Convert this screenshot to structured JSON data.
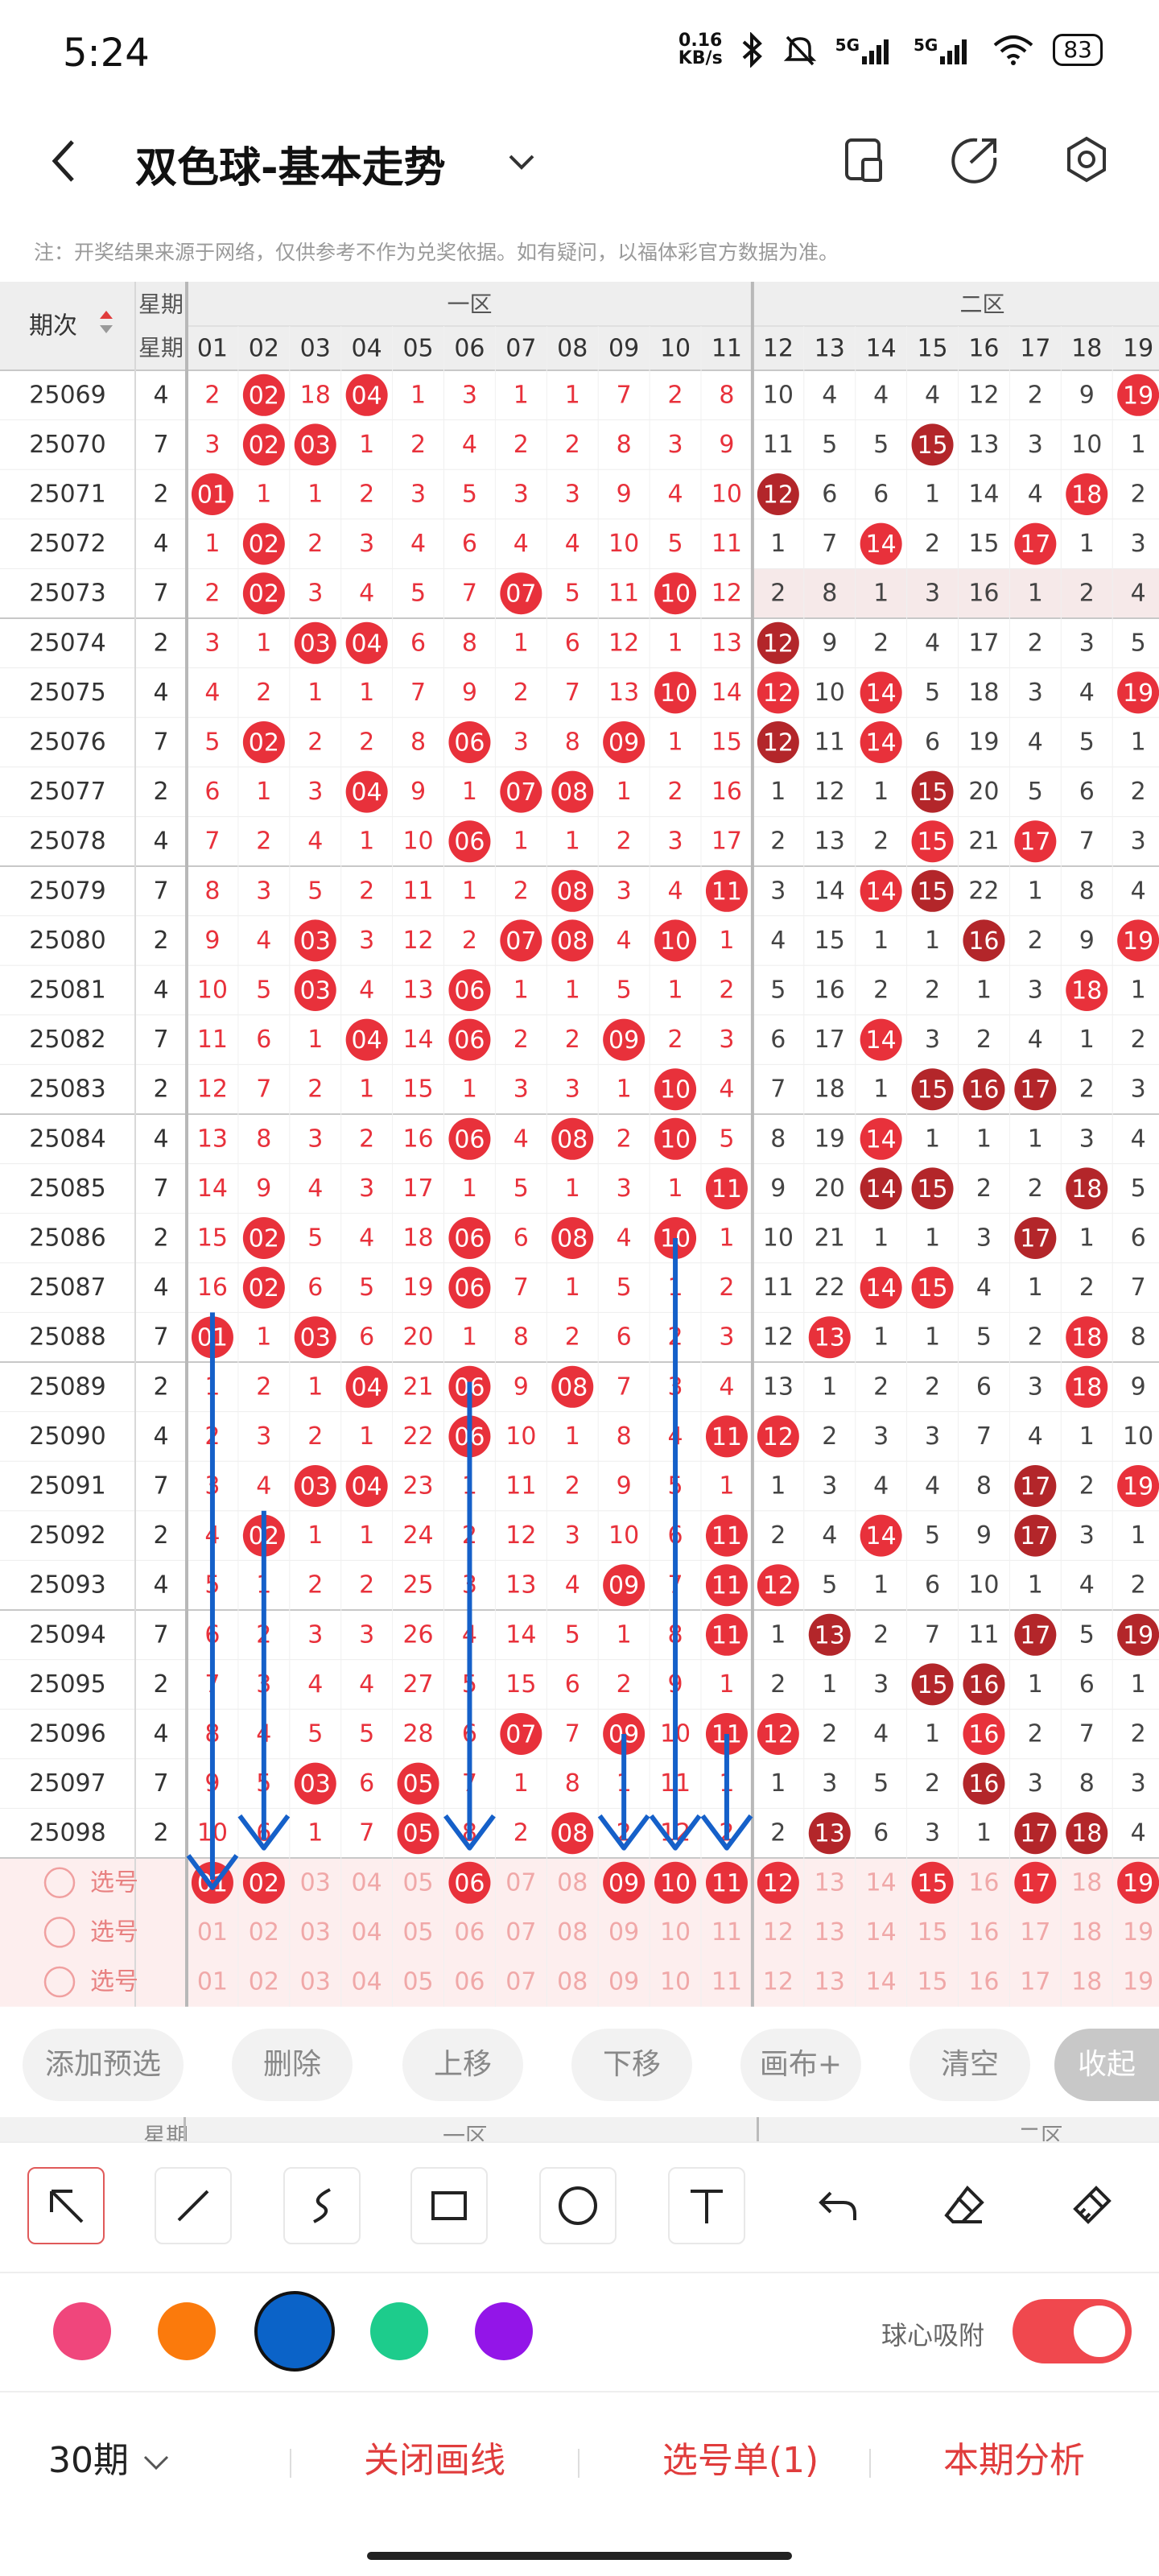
{
  "status": {
    "time": "5:24",
    "speed_value": "0.16",
    "speed_unit": "KB/s",
    "signal1": "5G",
    "signal2": "5G",
    "battery": "83",
    "icons": [
      "bluetooth-icon",
      "mute-icon",
      "signal-icon",
      "wifi-icon",
      "battery-icon"
    ]
  },
  "header": {
    "title": "双色球-基本走势",
    "icons": [
      "back-icon",
      "chevron-down-icon",
      "device-icon",
      "share-icon",
      "settings-icon"
    ]
  },
  "note": "注：开奖结果来源于网络，仅供参考不作为兑奖依据。如有疑问，以福体彩官方数据为准。",
  "table": {
    "col_issue": "期次",
    "col_week": "星期",
    "zone1": "一区",
    "zone2": "二区",
    "numbers": [
      "01",
      "02",
      "03",
      "04",
      "05",
      "06",
      "07",
      "08",
      "09",
      "10",
      "11",
      "12",
      "13",
      "14",
      "15",
      "16",
      "17",
      "18",
      "19"
    ],
    "rows": [
      {
        "issue": "25069",
        "week": "4",
        "cells": [
          "2",
          "02",
          "18",
          "04",
          "1",
          "3",
          "1",
          "1",
          "7",
          "2",
          "8",
          "10",
          "4",
          "4",
          "4",
          "12",
          "2",
          "9",
          "19"
        ],
        "hot": [
          2,
          4
        ],
        "hot2": [
          19
        ]
      },
      {
        "issue": "25070",
        "week": "7",
        "cells": [
          "3",
          "02",
          "03",
          "1",
          "2",
          "4",
          "2",
          "2",
          "8",
          "3",
          "9",
          "11",
          "5",
          "5",
          "15",
          "13",
          "3",
          "10",
          "1"
        ],
        "hot": [
          2,
          3
        ],
        "hot2": [
          15
        ]
      },
      {
        "issue": "25071",
        "week": "2",
        "cells": [
          "01",
          "1",
          "1",
          "2",
          "3",
          "5",
          "3",
          "3",
          "9",
          "4",
          "10",
          "12",
          "6",
          "6",
          "1",
          "14",
          "4",
          "18",
          "2"
        ],
        "hot": [
          1
        ],
        "hot2": [
          12,
          18
        ]
      },
      {
        "issue": "25072",
        "week": "4",
        "cells": [
          "1",
          "02",
          "2",
          "3",
          "4",
          "6",
          "4",
          "4",
          "10",
          "5",
          "11",
          "1",
          "7",
          "14",
          "2",
          "15",
          "17",
          "1",
          "3"
        ],
        "hot": [
          2
        ],
        "hot2": [
          14,
          17
        ]
      },
      {
        "issue": "25073",
        "week": "7",
        "cells": [
          "2",
          "02",
          "3",
          "4",
          "5",
          "7",
          "07",
          "5",
          "11",
          "10",
          "12",
          "2",
          "8",
          "1",
          "3",
          "16",
          "1",
          "2",
          "4"
        ],
        "hot": [
          2,
          7,
          10
        ],
        "hot2": []
      },
      {
        "issue": "25074",
        "week": "2",
        "cells": [
          "3",
          "1",
          "03",
          "04",
          "6",
          "8",
          "1",
          "6",
          "12",
          "1",
          "13",
          "12",
          "9",
          "2",
          "4",
          "17",
          "2",
          "3",
          "5"
        ],
        "hot": [
          3,
          4
        ],
        "hot2": [
          12
        ]
      },
      {
        "issue": "25075",
        "week": "4",
        "cells": [
          "4",
          "2",
          "1",
          "1",
          "7",
          "9",
          "2",
          "7",
          "13",
          "10",
          "14",
          "12",
          "10",
          "14",
          "5",
          "18",
          "3",
          "4",
          "19"
        ],
        "hot": [
          10
        ],
        "hot2": [
          12,
          14,
          19
        ]
      },
      {
        "issue": "25076",
        "week": "7",
        "cells": [
          "5",
          "02",
          "2",
          "2",
          "8",
          "06",
          "3",
          "8",
          "09",
          "1",
          "15",
          "12",
          "11",
          "14",
          "6",
          "19",
          "4",
          "5",
          "1"
        ],
        "hot": [
          2,
          6,
          9
        ],
        "hot2": [
          12,
          14
        ]
      },
      {
        "issue": "25077",
        "week": "2",
        "cells": [
          "6",
          "1",
          "3",
          "04",
          "9",
          "1",
          "07",
          "08",
          "1",
          "2",
          "16",
          "1",
          "12",
          "1",
          "15",
          "20",
          "5",
          "6",
          "2"
        ],
        "hot": [
          4,
          7,
          8
        ],
        "hot2": [
          15
        ]
      },
      {
        "issue": "25078",
        "week": "4",
        "cells": [
          "7",
          "2",
          "4",
          "1",
          "10",
          "06",
          "1",
          "1",
          "2",
          "3",
          "17",
          "2",
          "13",
          "2",
          "15",
          "21",
          "17",
          "7",
          "3"
        ],
        "hot": [
          6
        ],
        "hot2": [
          15,
          17
        ]
      },
      {
        "issue": "25079",
        "week": "7",
        "cells": [
          "8",
          "3",
          "5",
          "2",
          "11",
          "1",
          "2",
          "08",
          "3",
          "4",
          "11",
          "3",
          "14",
          "14",
          "15",
          "22",
          "1",
          "8",
          "4"
        ],
        "hot": [
          8,
          11
        ],
        "hot2": [
          14,
          15
        ]
      },
      {
        "issue": "25080",
        "week": "2",
        "cells": [
          "9",
          "4",
          "03",
          "3",
          "12",
          "2",
          "07",
          "08",
          "4",
          "10",
          "1",
          "4",
          "15",
          "1",
          "1",
          "16",
          "2",
          "9",
          "19"
        ],
        "hot": [
          3,
          7,
          8,
          10
        ],
        "hot2": [
          16,
          19
        ]
      },
      {
        "issue": "25081",
        "week": "4",
        "cells": [
          "10",
          "5",
          "03",
          "4",
          "13",
          "06",
          "1",
          "1",
          "5",
          "1",
          "2",
          "5",
          "16",
          "2",
          "2",
          "1",
          "3",
          "18",
          "1"
        ],
        "hot": [
          3,
          6
        ],
        "hot2": [
          18
        ]
      },
      {
        "issue": "25082",
        "week": "7",
        "cells": [
          "11",
          "6",
          "1",
          "04",
          "14",
          "06",
          "2",
          "2",
          "09",
          "2",
          "3",
          "6",
          "17",
          "14",
          "3",
          "2",
          "4",
          "1",
          "2"
        ],
        "hot": [
          4,
          6,
          9
        ],
        "hot2": [
          14
        ]
      },
      {
        "issue": "25083",
        "week": "2",
        "cells": [
          "12",
          "7",
          "2",
          "1",
          "15",
          "1",
          "3",
          "3",
          "1",
          "10",
          "4",
          "7",
          "18",
          "1",
          "15",
          "16",
          "17",
          "2",
          "3"
        ],
        "hot": [
          10
        ],
        "hot2": [
          15,
          16,
          17
        ]
      },
      {
        "issue": "25084",
        "week": "4",
        "cells": [
          "13",
          "8",
          "3",
          "2",
          "16",
          "06",
          "4",
          "08",
          "2",
          "10",
          "5",
          "8",
          "19",
          "14",
          "1",
          "1",
          "1",
          "3",
          "4"
        ],
        "hot": [
          6,
          8,
          10
        ],
        "hot2": [
          14
        ]
      },
      {
        "issue": "25085",
        "week": "7",
        "cells": [
          "14",
          "9",
          "4",
          "3",
          "17",
          "1",
          "5",
          "1",
          "3",
          "1",
          "11",
          "9",
          "20",
          "14",
          "15",
          "2",
          "2",
          "18",
          "5"
        ],
        "hot": [
          11
        ],
        "hot2": [
          14,
          15,
          18
        ]
      },
      {
        "issue": "25086",
        "week": "2",
        "cells": [
          "15",
          "02",
          "5",
          "4",
          "18",
          "06",
          "6",
          "08",
          "4",
          "10",
          "1",
          "10",
          "21",
          "1",
          "1",
          "3",
          "17",
          "1",
          "6"
        ],
        "hot": [
          2,
          6,
          8,
          10
        ],
        "hot2": [
          17
        ]
      },
      {
        "issue": "25087",
        "week": "4",
        "cells": [
          "16",
          "02",
          "6",
          "5",
          "19",
          "06",
          "7",
          "1",
          "5",
          "1",
          "2",
          "11",
          "22",
          "14",
          "15",
          "4",
          "1",
          "2",
          "7"
        ],
        "hot": [
          2,
          6
        ],
        "hot2": [
          14,
          15
        ]
      },
      {
        "issue": "25088",
        "week": "7",
        "cells": [
          "01",
          "1",
          "03",
          "6",
          "20",
          "1",
          "8",
          "2",
          "6",
          "2",
          "3",
          "12",
          "13",
          "1",
          "1",
          "5",
          "2",
          "18",
          "8"
        ],
        "hot": [
          1,
          3
        ],
        "hot2": [
          13,
          18
        ]
      },
      {
        "issue": "25089",
        "week": "2",
        "cells": [
          "1",
          "2",
          "1",
          "04",
          "21",
          "06",
          "9",
          "08",
          "7",
          "3",
          "4",
          "13",
          "1",
          "2",
          "2",
          "6",
          "3",
          "18",
          "9"
        ],
        "hot": [
          4,
          6,
          8
        ],
        "hot2": [
          18
        ]
      },
      {
        "issue": "25090",
        "week": "4",
        "cells": [
          "2",
          "3",
          "2",
          "1",
          "22",
          "06",
          "10",
          "1",
          "8",
          "4",
          "11",
          "12",
          "2",
          "3",
          "3",
          "7",
          "4",
          "1",
          "10"
        ],
        "hot": [
          6,
          11
        ],
        "hot2": [
          12
        ]
      },
      {
        "issue": "25091",
        "week": "7",
        "cells": [
          "3",
          "4",
          "03",
          "04",
          "23",
          "1",
          "11",
          "2",
          "9",
          "5",
          "1",
          "1",
          "3",
          "4",
          "4",
          "8",
          "17",
          "2",
          "19"
        ],
        "hot": [
          3,
          4
        ],
        "hot2": [
          17,
          19
        ]
      },
      {
        "issue": "25092",
        "week": "2",
        "cells": [
          "4",
          "02",
          "1",
          "1",
          "24",
          "2",
          "12",
          "3",
          "10",
          "6",
          "11",
          "2",
          "4",
          "14",
          "5",
          "9",
          "17",
          "3",
          "1"
        ],
        "hot": [
          2,
          11
        ],
        "hot2": [
          14,
          17
        ]
      },
      {
        "issue": "25093",
        "week": "4",
        "cells": [
          "5",
          "1",
          "2",
          "2",
          "25",
          "3",
          "13",
          "4",
          "09",
          "7",
          "11",
          "12",
          "5",
          "1",
          "6",
          "10",
          "1",
          "4",
          "2"
        ],
        "hot": [
          9,
          11
        ],
        "hot2": [
          12
        ]
      },
      {
        "issue": "25094",
        "week": "7",
        "cells": [
          "6",
          "2",
          "3",
          "3",
          "26",
          "4",
          "14",
          "5",
          "1",
          "8",
          "11",
          "1",
          "13",
          "2",
          "7",
          "11",
          "17",
          "5",
          "19"
        ],
        "hot": [
          11
        ],
        "hot2": [
          13,
          17,
          19
        ]
      },
      {
        "issue": "25095",
        "week": "2",
        "cells": [
          "7",
          "3",
          "4",
          "4",
          "27",
          "5",
          "15",
          "6",
          "2",
          "9",
          "1",
          "2",
          "1",
          "3",
          "15",
          "16",
          "1",
          "6",
          "1"
        ],
        "hot": [],
        "hot2": [
          15,
          16
        ]
      },
      {
        "issue": "25096",
        "week": "4",
        "cells": [
          "8",
          "4",
          "5",
          "5",
          "28",
          "6",
          "07",
          "7",
          "09",
          "10",
          "11",
          "12",
          "2",
          "4",
          "1",
          "16",
          "2",
          "7",
          "2"
        ],
        "hot": [
          7,
          9,
          11
        ],
        "hot2": [
          12,
          16
        ]
      },
      {
        "issue": "25097",
        "week": "7",
        "cells": [
          "9",
          "5",
          "03",
          "6",
          "05",
          "7",
          "1",
          "8",
          "1",
          "11",
          "1",
          "1",
          "3",
          "5",
          "2",
          "16",
          "3",
          "8",
          "3"
        ],
        "hot": [
          3,
          5
        ],
        "hot2": [
          16
        ]
      },
      {
        "issue": "25098",
        "week": "2",
        "cells": [
          "10",
          "6",
          "1",
          "7",
          "05",
          "8",
          "2",
          "08",
          "2",
          "12",
          "2",
          "2",
          "13",
          "6",
          "3",
          "1",
          "17",
          "18",
          "4"
        ],
        "hot": [
          5,
          8
        ],
        "hot2": [
          13,
          17,
          18
        ]
      }
    ],
    "pick_label": "选号",
    "pick_selected": [
      1,
      2,
      6,
      9,
      10,
      11,
      12,
      15,
      17,
      19
    ]
  },
  "actions": [
    "添加预选",
    "删除",
    "上移",
    "下移",
    "画布+",
    "清空",
    "收起"
  ],
  "tools": [
    "arrow-tool-icon",
    "line-tool-icon",
    "curve-tool-icon",
    "rectangle-tool-icon",
    "circle-tool-icon",
    "text-tool-icon",
    "undo-icon",
    "eraser-icon",
    "clear-brush-icon"
  ],
  "colors": [
    "#f0467c",
    "#fb7a0c",
    "#0b63c8",
    "#1dcc8c",
    "#9315e8"
  ],
  "snap_label": "球心吸附",
  "bottom": {
    "period": "30期",
    "close_lines": "关闭画线",
    "pick_list": "选号单(1)",
    "analysis": "本期分析"
  }
}
